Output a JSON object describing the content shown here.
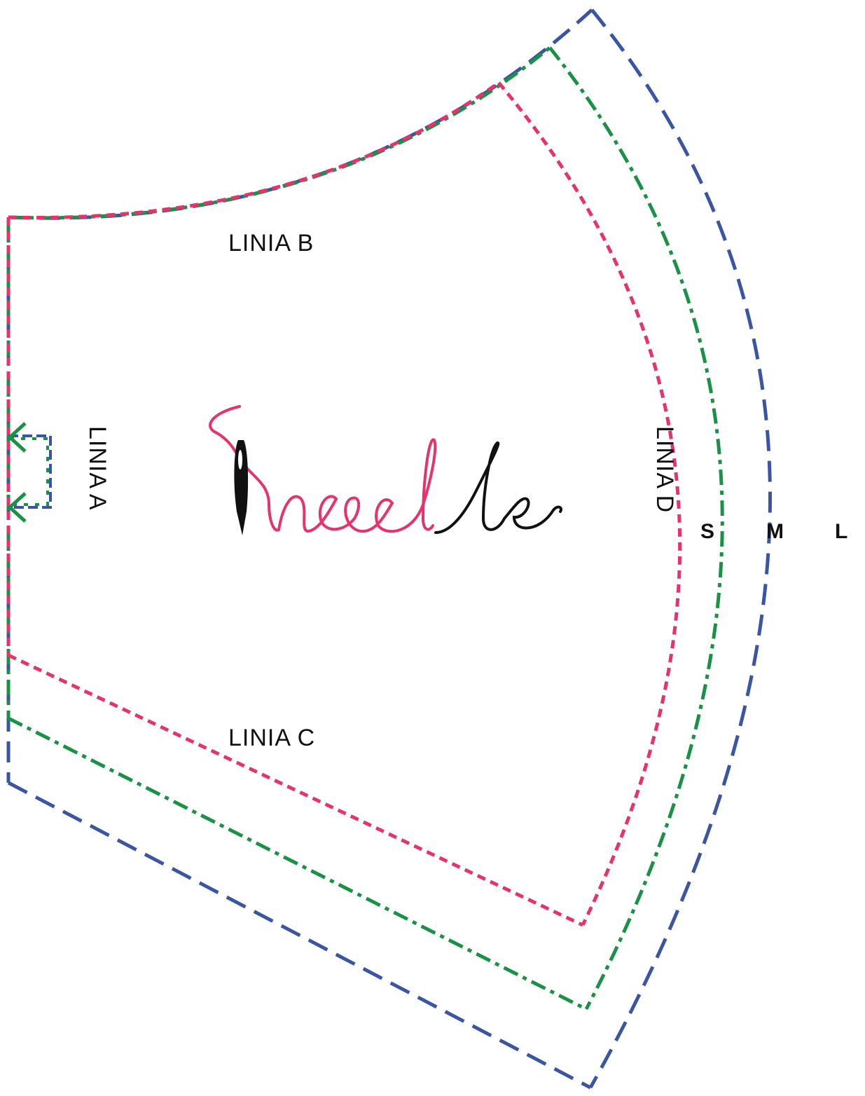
{
  "labels": {
    "line_a": "LINIA A",
    "line_b": "LINIA B",
    "line_c": "LINIA C",
    "line_d": "LINIA D"
  },
  "sizes": {
    "s": "S",
    "m": "M",
    "l": "L"
  },
  "logo": {
    "text": "needle",
    "needle_color": "#111111",
    "thread_color": "#e6336b"
  },
  "colors": {
    "size_s": "#e6336b",
    "size_m": "#1a9246",
    "size_l": "#3a55a4",
    "text": "#111111"
  }
}
